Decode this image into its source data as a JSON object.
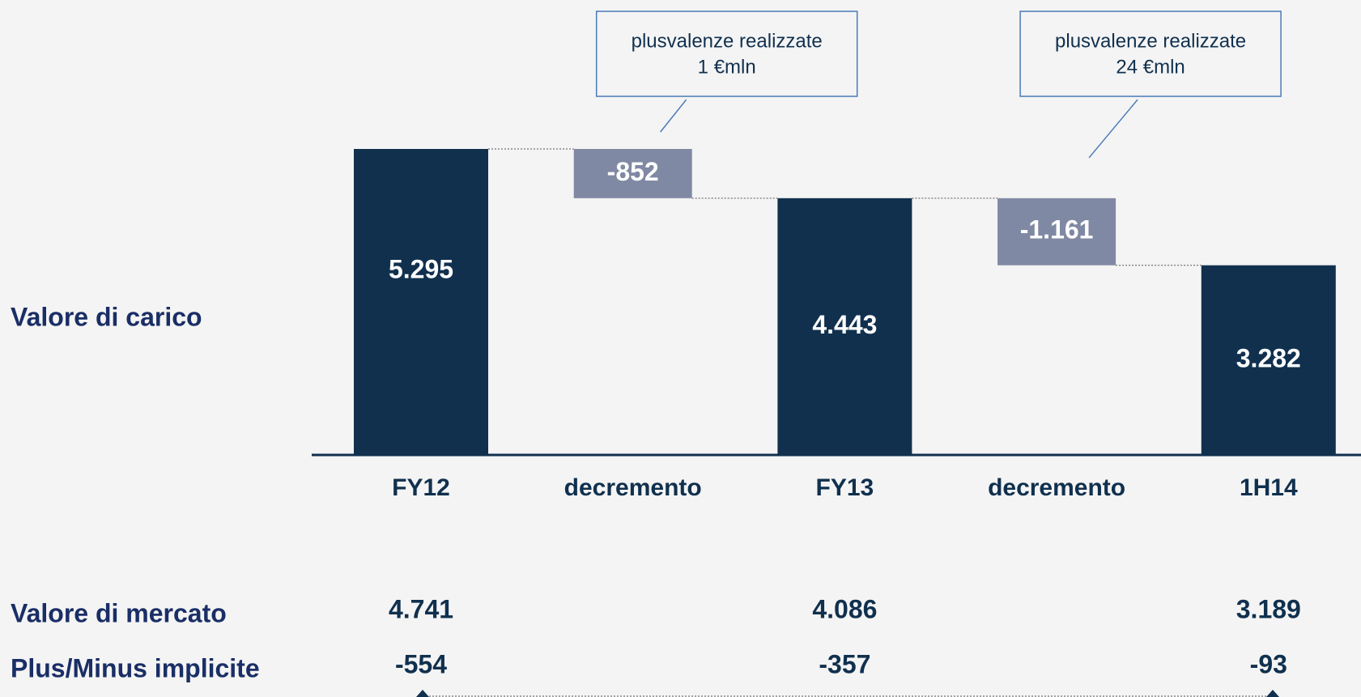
{
  "chart_data": {
    "type": "waterfall",
    "row_label": "Valore di carico",
    "categories": [
      "FY12",
      "decremento",
      "FY13",
      "decremento",
      "1H14"
    ],
    "values": [
      5295,
      -852,
      4443,
      -1161,
      3282
    ],
    "value_labels": [
      "5.295",
      "-852",
      "4.443",
      "-1.161",
      "3.282"
    ],
    "measure": [
      "absolute",
      "relative",
      "absolute",
      "relative",
      "absolute"
    ],
    "total_color": "#10304e",
    "decrease_color": "#8089a3",
    "annotations": [
      {
        "lines": [
          "plusvalenze realizzate",
          "1 €mln"
        ],
        "category": 1
      },
      {
        "lines": [
          "plusvalenze realizzate",
          "24 €mln"
        ],
        "category": 3
      }
    ],
    "rows": [
      {
        "name": "Valore di mercato",
        "values": [
          4741,
          null,
          4086,
          null,
          3189
        ],
        "value_labels": [
          "4.741",
          null,
          "4.086",
          null,
          "3.189"
        ]
      },
      {
        "name": "Plus/Minus implicite",
        "values": [
          -554,
          null,
          -357,
          null,
          -93
        ],
        "value_labels": [
          "-554",
          null,
          "-357",
          null,
          "-93"
        ]
      }
    ]
  }
}
